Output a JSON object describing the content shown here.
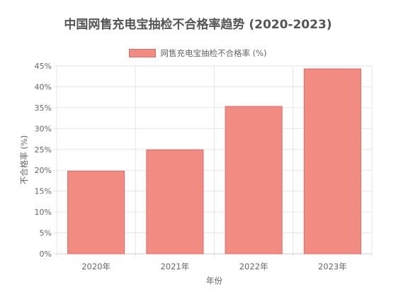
{
  "chart_data": {
    "type": "bar",
    "title": "中国网售充电宝抽检不合格率趋势 (2020-2023)",
    "categories": [
      "2020年",
      "2021年",
      "2022年",
      "2023年"
    ],
    "series": [
      {
        "name": "网售充电宝抽检不合格率 (%)",
        "values": [
          19.8,
          24.9,
          35.3,
          44.3
        ]
      }
    ],
    "xlabel": "年份",
    "ylabel": "不合格率 (%)",
    "ylim": [
      0,
      45
    ],
    "yticks": [
      0,
      5,
      10,
      15,
      20,
      25,
      30,
      35,
      40,
      45
    ],
    "ytick_suffix": "%",
    "grid": true,
    "legend_position": "top-center",
    "colors": {
      "bar_fill": "#F28B82",
      "bar_border": "#E06B62",
      "grid": "#E5E5E5",
      "text": "#666666"
    }
  }
}
